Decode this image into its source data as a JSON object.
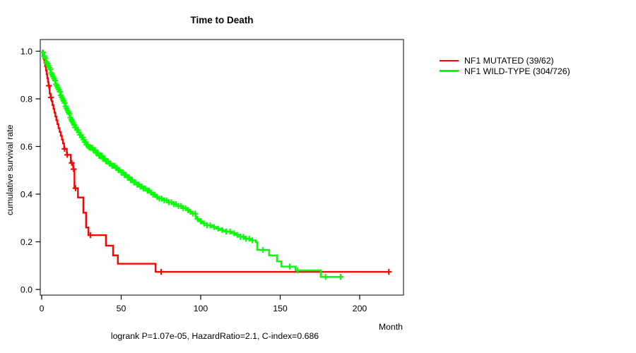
{
  "title": "Time to Death",
  "footer": "logrank P=1.07e-05, HazardRatio=2.1, C-index=0.686",
  "x_axis_label": "Month",
  "y_axis_label": "cumulative survival rate",
  "chart_data": {
    "type": "line",
    "subtype": "kaplan-meier-step",
    "title": "Time to Death",
    "xlabel": "Month",
    "ylabel": "cumulative survival rate",
    "annotation": "logrank P=1.07e-05, HazardRatio=2.1, C-index=0.686",
    "xlim": [
      0,
      227
    ],
    "ylim": [
      0,
      1.0
    ],
    "xticks": [
      0,
      50,
      100,
      150,
      200
    ],
    "yticks": [
      0.0,
      0.2,
      0.4,
      0.6,
      0.8,
      1.0
    ],
    "grid": false,
    "legend_position": "right-outside",
    "series": [
      {
        "name": "NF1 MUTATED (39/62)",
        "color": "#FF0000",
        "end_month": 218.3,
        "steps": [
          [
            0,
            1.0
          ],
          [
            0.7,
            0.984
          ],
          [
            1.2,
            0.968
          ],
          [
            1.7,
            0.952
          ],
          [
            2.2,
            0.936
          ],
          [
            2.7,
            0.919
          ],
          [
            3.1,
            0.903
          ],
          [
            3.5,
            0.887
          ],
          [
            3.9,
            0.871
          ],
          [
            4.3,
            0.855
          ],
          [
            5.0,
            0.822
          ],
          [
            5.6,
            0.806
          ],
          [
            6.2,
            0.79
          ],
          [
            6.8,
            0.774
          ],
          [
            7.4,
            0.758
          ],
          [
            8.0,
            0.742
          ],
          [
            8.6,
            0.726
          ],
          [
            9.2,
            0.71
          ],
          [
            9.9,
            0.694
          ],
          [
            10.6,
            0.677
          ],
          [
            11.3,
            0.661
          ],
          [
            12.0,
            0.645
          ],
          [
            12.7,
            0.629
          ],
          [
            13.4,
            0.613
          ],
          [
            14.1,
            0.59
          ],
          [
            15.8,
            0.565
          ],
          [
            18.3,
            0.531
          ],
          [
            19.8,
            0.505
          ],
          [
            20.6,
            0.425
          ],
          [
            22.8,
            0.386
          ],
          [
            26.2,
            0.322
          ],
          [
            27.9,
            0.26
          ],
          [
            29.4,
            0.228
          ],
          [
            40.4,
            0.184
          ],
          [
            44.9,
            0.143
          ],
          [
            47.9,
            0.108
          ],
          [
            71.6,
            0.074
          ]
        ],
        "censor_months": [
          4.5,
          5.8,
          14.4,
          16.1,
          18.9,
          20.1,
          21.3,
          30.6,
          75.1,
          218.3
        ]
      },
      {
        "name": "NF1 WILD-TYPE (304/726)",
        "color": "#00FF00",
        "end_month": 189,
        "steps": [
          [
            0,
            1.0
          ],
          [
            0.5,
            0.995
          ],
          [
            1,
            0.987
          ],
          [
            1.5,
            0.979
          ],
          [
            2,
            0.971
          ],
          [
            2.5,
            0.963
          ],
          [
            3,
            0.955
          ],
          [
            3.5,
            0.948
          ],
          [
            4,
            0.94
          ],
          [
            4.5,
            0.932
          ],
          [
            5,
            0.924
          ],
          [
            5.5,
            0.916
          ],
          [
            6,
            0.908
          ],
          [
            6.5,
            0.901
          ],
          [
            7,
            0.893
          ],
          [
            7.5,
            0.885
          ],
          [
            8,
            0.877
          ],
          [
            8.5,
            0.869
          ],
          [
            9,
            0.861
          ],
          [
            9.5,
            0.854
          ],
          [
            10,
            0.846
          ],
          [
            10.5,
            0.838
          ],
          [
            11,
            0.83
          ],
          [
            11.5,
            0.822
          ],
          [
            12,
            0.815
          ],
          [
            12.5,
            0.807
          ],
          [
            13,
            0.799
          ],
          [
            13.5,
            0.791
          ],
          [
            14,
            0.783
          ],
          [
            14.5,
            0.776
          ],
          [
            15,
            0.768
          ],
          [
            15.5,
            0.76
          ],
          [
            16,
            0.752
          ],
          [
            16.5,
            0.744
          ],
          [
            17,
            0.737
          ],
          [
            17.5,
            0.729
          ],
          [
            18,
            0.721
          ],
          [
            18.5,
            0.713
          ],
          [
            19,
            0.706
          ],
          [
            19.5,
            0.698
          ],
          [
            20,
            0.69
          ],
          [
            21,
            0.68
          ],
          [
            22,
            0.669
          ],
          [
            23,
            0.659
          ],
          [
            24,
            0.649
          ],
          [
            25,
            0.638
          ],
          [
            26,
            0.628
          ],
          [
            27,
            0.618
          ],
          [
            28,
            0.607
          ],
          [
            29,
            0.6
          ],
          [
            30,
            0.595
          ],
          [
            32,
            0.585
          ],
          [
            34,
            0.573
          ],
          [
            36,
            0.561
          ],
          [
            38,
            0.549
          ],
          [
            40,
            0.538
          ],
          [
            42,
            0.528
          ],
          [
            44,
            0.519
          ],
          [
            46,
            0.51
          ],
          [
            48,
            0.501
          ],
          [
            50,
            0.491
          ],
          [
            52,
            0.48
          ],
          [
            54,
            0.47
          ],
          [
            56,
            0.459
          ],
          [
            58,
            0.449
          ],
          [
            60,
            0.44
          ],
          [
            62,
            0.432
          ],
          [
            64,
            0.424
          ],
          [
            66,
            0.415
          ],
          [
            68,
            0.407
          ],
          [
            70,
            0.398
          ],
          [
            72,
            0.388
          ],
          [
            74,
            0.381
          ],
          [
            77,
            0.374
          ],
          [
            80,
            0.366
          ],
          [
            83,
            0.358
          ],
          [
            86,
            0.35
          ],
          [
            89,
            0.341
          ],
          [
            91,
            0.333
          ],
          [
            93,
            0.326
          ],
          [
            95,
            0.318
          ],
          [
            97,
            0.296
          ],
          [
            99,
            0.286
          ],
          [
            101,
            0.277
          ],
          [
            104,
            0.269
          ],
          [
            107,
            0.262
          ],
          [
            110,
            0.255
          ],
          [
            113,
            0.249
          ],
          [
            116,
            0.243
          ],
          [
            119,
            0.236
          ],
          [
            122,
            0.229
          ],
          [
            125,
            0.221
          ],
          [
            128,
            0.213
          ],
          [
            131,
            0.206
          ],
          [
            134.7,
            0.198
          ],
          [
            135.5,
            0.166
          ],
          [
            143,
            0.143
          ],
          [
            148,
            0.118
          ],
          [
            150.7,
            0.096
          ],
          [
            159.6,
            0.08
          ],
          [
            175.5,
            0.053
          ]
        ],
        "censor_months": [
          0.8,
          1.6,
          2.3,
          3.0,
          3.6,
          4.2,
          4.8,
          5.4,
          6.0,
          6.6,
          7.2,
          7.8,
          8.4,
          9.0,
          9.6,
          10.2,
          10.8,
          11.4,
          12.0,
          12.6,
          13.2,
          13.8,
          14.4,
          15.0,
          15.6,
          16.2,
          16.8,
          17.4,
          18.0,
          18.6,
          19.2,
          19.8,
          20.4,
          21.0,
          21.6,
          22.2,
          22.8,
          23.4,
          24.0,
          24.6,
          25.2,
          25.8,
          26.4,
          27.0,
          27.6,
          28.2,
          28.8,
          29.4,
          30.0,
          30.6,
          31.2,
          31.8,
          32.4,
          33.0,
          33.6,
          34.2,
          34.8,
          35.4,
          36.0,
          36.6,
          37.2,
          37.8,
          38.4,
          39.0,
          39.6,
          40.3,
          41.0,
          41.8,
          42.6,
          43.4,
          44.2,
          45.0,
          45.8,
          46.6,
          47.4,
          48.2,
          49.0,
          50.0,
          51.0,
          52.0,
          53.0,
          54.0,
          55.0,
          56.0,
          57.0,
          58.0,
          59.0,
          60.0,
          61.0,
          62.0,
          63.0,
          64.0,
          65.2,
          66.4,
          67.6,
          68.8,
          70.0,
          71.2,
          72.5,
          74.0,
          75.5,
          77.0,
          78.5,
          80.0,
          81.5,
          83.0,
          84.5,
          86.0,
          87.5,
          89.0,
          90.5,
          92.0,
          93.5,
          95.0,
          96.5,
          98.0,
          100.0,
          102.0,
          104.0,
          106.0,
          108.5,
          111.0,
          113.5,
          116.0,
          118.5,
          121.0,
          123.0,
          125.0,
          126.8,
          128.5,
          130.5,
          132.5,
          139.0,
          156.0,
          161.0,
          178.5,
          188.0
        ]
      }
    ]
  }
}
